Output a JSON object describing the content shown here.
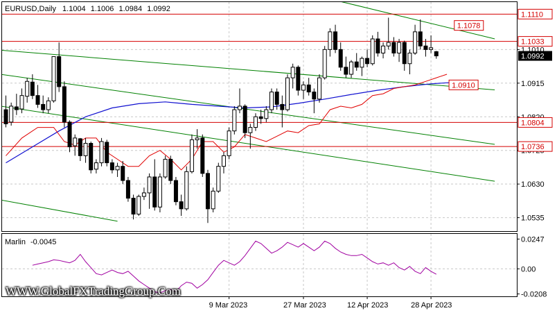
{
  "chart_data": {
    "type": "candlestick",
    "instrument": "EURUSD,Daily",
    "ohlc_header": [
      "1.1004",
      "1.1006",
      "1.0984",
      "1.0992"
    ],
    "ylim": [
      1.0497,
      1.1144
    ],
    "y_ticks": [
      "1.0535",
      "1.0630",
      "1.0725",
      "1.0820",
      "1.0915",
      "1.1010"
    ],
    "x_ticks": [
      {
        "label": "9 Mar 2023",
        "index": 42
      },
      {
        "label": "27 Mar 2023",
        "index": 56
      },
      {
        "label": "12 Apr 2023",
        "index": 68
      },
      {
        "label": "28 Apr 2023",
        "index": 80
      }
    ],
    "last_price": "1.0992",
    "horizontal_levels": [
      {
        "value": 1.111,
        "label": "1.1110",
        "style": "solid"
      },
      {
        "value": 1.1033,
        "label": "1.1033",
        "style": "solid"
      },
      {
        "value": 1.0804,
        "label": "1.0804",
        "style": "solid"
      },
      {
        "value": 1.0736,
        "label": "1.0736",
        "style": "solid"
      }
    ],
    "trend_labels": [
      {
        "value": 1.1078,
        "label": "1.1078"
      },
      {
        "value": 1.091,
        "label": "1.0910"
      }
    ],
    "colors": {
      "level": "#d40000",
      "channel": "#008000",
      "ma_blue": "#1010d0",
      "ma_red": "#e00000",
      "oscillator": "#a000a0"
    },
    "channel_lines": [
      {
        "p1": [
          -1,
          1.1008
        ],
        "p2": [
          92,
          1.0896
        ]
      },
      {
        "p1": [
          -1,
          1.094
        ],
        "p2": [
          92,
          1.0742
        ]
      },
      {
        "p1": [
          -1,
          1.085
        ],
        "p2": [
          92,
          1.0638
        ]
      },
      {
        "p1": [
          -1,
          1.0585
        ],
        "p2": [
          21,
          1.0525
        ]
      },
      {
        "p1": [
          59,
          1.116
        ],
        "p2": [
          92,
          1.104
        ]
      }
    ],
    "candles": [
      [
        1.084,
        1.088,
        1.079,
        1.08
      ],
      [
        1.0805,
        1.086,
        1.0795,
        1.085
      ],
      [
        1.0848,
        1.0885,
        1.0825,
        1.084
      ],
      [
        1.0842,
        1.09,
        1.083,
        1.088
      ],
      [
        1.0878,
        1.093,
        1.086,
        1.092
      ],
      [
        1.0918,
        1.094,
        1.087,
        1.088
      ],
      [
        1.088,
        1.091,
        1.0845,
        1.0855
      ],
      [
        1.0855,
        1.088,
        1.083,
        1.084
      ],
      [
        1.084,
        1.0875,
        1.083,
        1.0865
      ],
      [
        1.0865,
        1.099,
        1.086,
        1.099
      ],
      [
        1.099,
        1.103,
        1.089,
        1.0905
      ],
      [
        1.0905,
        1.092,
        1.079,
        1.0805
      ],
      [
        1.0805,
        1.081,
        1.072,
        1.0735
      ],
      [
        1.0738,
        1.077,
        1.071,
        1.076
      ],
      [
        1.0758,
        1.076,
        1.0695,
        1.071
      ],
      [
        1.071,
        1.076,
        1.069,
        1.0745
      ],
      [
        1.0745,
        1.075,
        1.066,
        1.067
      ],
      [
        1.0672,
        1.07,
        1.066,
        1.069
      ],
      [
        1.069,
        1.076,
        1.068,
        1.075
      ],
      [
        1.0748,
        1.0755,
        1.068,
        1.069
      ],
      [
        1.069,
        1.07,
        1.066,
        1.067
      ],
      [
        1.067,
        1.069,
        1.065,
        1.068
      ],
      [
        1.068,
        1.0695,
        1.063,
        1.064
      ],
      [
        1.064,
        1.065,
        1.058,
        1.059
      ],
      [
        1.059,
        1.06,
        1.053,
        1.0545
      ],
      [
        1.0545,
        1.06,
        1.054,
        1.0595
      ],
      [
        1.0595,
        1.062,
        1.0585,
        1.0605
      ],
      [
        1.0605,
        1.066,
        1.056,
        1.065
      ],
      [
        1.065,
        1.07,
        1.0555,
        1.0565
      ],
      [
        1.0565,
        1.066,
        1.055,
        1.065
      ],
      [
        1.065,
        1.071,
        1.0645,
        1.07
      ],
      [
        1.07,
        1.071,
        1.063,
        1.064
      ],
      [
        1.064,
        1.065,
        1.057,
        1.058
      ],
      [
        1.058,
        1.06,
        1.054,
        1.056
      ],
      [
        1.056,
        1.068,
        1.0555,
        1.0665
      ],
      [
        1.0665,
        1.077,
        1.066,
        1.0755
      ],
      [
        1.0755,
        1.0785,
        1.073,
        1.076
      ],
      [
        1.076,
        1.077,
        1.065,
        1.066
      ],
      [
        1.066,
        1.067,
        1.052,
        1.056
      ],
      [
        1.056,
        1.062,
        1.055,
        1.061
      ],
      [
        1.061,
        1.069,
        1.0605,
        1.068
      ],
      [
        1.068,
        1.072,
        1.066,
        1.071
      ],
      [
        1.071,
        1.079,
        1.07,
        1.078
      ],
      [
        1.078,
        1.085,
        1.077,
        1.084
      ],
      [
        1.084,
        1.09,
        1.083,
        1.085
      ],
      [
        1.085,
        1.0855,
        1.076,
        1.0775
      ],
      [
        1.0775,
        1.08,
        1.073,
        1.079
      ],
      [
        1.079,
        1.083,
        1.078,
        1.082
      ],
      [
        1.082,
        1.084,
        1.08,
        1.0815
      ],
      [
        1.0815,
        1.085,
        1.0805,
        1.084
      ],
      [
        1.084,
        1.09,
        1.083,
        1.089
      ],
      [
        1.089,
        1.09,
        1.084,
        1.0855
      ],
      [
        1.0855,
        1.088,
        1.079,
        1.084
      ],
      [
        1.084,
        1.094,
        1.0835,
        1.093
      ],
      [
        1.093,
        1.097,
        1.09,
        1.096
      ],
      [
        1.096,
        1.0965,
        1.088,
        1.0895
      ],
      [
        1.0895,
        1.092,
        1.087,
        1.091
      ],
      [
        1.091,
        1.093,
        1.088,
        1.089
      ],
      [
        1.089,
        1.09,
        1.083,
        1.087
      ],
      [
        1.087,
        1.094,
        1.086,
        1.093
      ],
      [
        1.093,
        1.102,
        1.0925,
        1.101
      ],
      [
        1.101,
        1.107,
        1.099,
        1.106
      ],
      [
        1.106,
        1.108,
        1.1,
        1.101
      ],
      [
        1.101,
        1.103,
        1.095,
        1.096
      ],
      [
        1.096,
        1.099,
        1.093,
        1.094
      ],
      [
        1.094,
        1.098,
        1.093,
        1.0975
      ],
      [
        1.0975,
        1.1,
        1.095,
        1.096
      ],
      [
        1.096,
        1.099,
        1.0935,
        1.0985
      ],
      [
        1.0985,
        1.101,
        1.096,
        1.097
      ],
      [
        1.097,
        1.105,
        1.0965,
        1.104
      ],
      [
        1.104,
        1.106,
        1.099,
        1.1
      ],
      [
        1.1,
        1.103,
        1.0985,
        1.102
      ],
      [
        1.102,
        1.11,
        1.101,
        1.103
      ],
      [
        1.103,
        1.1045,
        1.099,
        1.1
      ],
      [
        1.1,
        1.104,
        1.0975,
        1.103
      ],
      [
        1.103,
        1.1035,
        1.095,
        1.097
      ],
      [
        1.097,
        1.101,
        1.094,
        1.1
      ],
      [
        1.1,
        1.108,
        1.0995,
        1.106
      ],
      [
        1.106,
        1.1095,
        1.101,
        1.102
      ],
      [
        1.102,
        1.104,
        1.099,
        1.101
      ],
      [
        1.101,
        1.105,
        1.1,
        1.1015
      ],
      [
        1.1004,
        1.1006,
        1.0984,
        1.0992
      ]
    ],
    "ma_blue": [
      [
        0,
        1.069
      ],
      [
        5,
        1.0735
      ],
      [
        10,
        1.078
      ],
      [
        15,
        1.082
      ],
      [
        20,
        1.0845
      ],
      [
        25,
        1.0857
      ],
      [
        30,
        1.0862
      ],
      [
        35,
        1.0855
      ],
      [
        40,
        1.085
      ],
      [
        45,
        1.0845
      ],
      [
        50,
        1.0848
      ],
      [
        55,
        1.0858
      ],
      [
        60,
        1.087
      ],
      [
        65,
        1.0883
      ],
      [
        70,
        1.0895
      ],
      [
        75,
        1.0905
      ],
      [
        80,
        1.0913
      ],
      [
        84,
        1.0917
      ]
    ],
    "ma_red": [
      [
        0,
        1.071
      ],
      [
        3,
        1.076
      ],
      [
        6,
        1.079
      ],
      [
        9,
        1.079
      ],
      [
        11,
        1.075
      ],
      [
        13,
        1.074
      ],
      [
        15,
        1.076
      ],
      [
        17,
        1.076
      ],
      [
        19,
        1.072
      ],
      [
        21,
        1.07
      ],
      [
        23,
        1.068
      ],
      [
        25,
        1.068
      ],
      [
        27,
        1.071
      ],
      [
        29,
        1.0725
      ],
      [
        31,
        1.07
      ],
      [
        33,
        1.067
      ],
      [
        35,
        1.07
      ],
      [
        37,
        1.075
      ],
      [
        39,
        1.075
      ],
      [
        41,
        1.072
      ],
      [
        43,
        1.0735
      ],
      [
        45,
        1.077
      ],
      [
        47,
        1.076
      ],
      [
        49,
        1.075
      ],
      [
        51,
        1.0765
      ],
      [
        53,
        1.078
      ],
      [
        55,
        1.0775
      ],
      [
        57,
        1.0795
      ],
      [
        59,
        1.08
      ],
      [
        61,
        1.084
      ],
      [
        63,
        1.085
      ],
      [
        65,
        1.0845
      ],
      [
        67,
        1.0855
      ],
      [
        69,
        1.088
      ],
      [
        71,
        1.0885
      ],
      [
        73,
        1.09
      ],
      [
        75,
        1.0905
      ],
      [
        77,
        1.091
      ],
      [
        79,
        1.092
      ],
      [
        81,
        1.093
      ],
      [
        83,
        1.094
      ]
    ],
    "oscillator": {
      "name": "Marlin",
      "value": "-0.0045",
      "ylim": [
        -0.0228,
        0.029
      ],
      "y_ticks": [
        "0.0247",
        "0.00",
        "-0.0208"
      ],
      "values": [
        0.003,
        0.004,
        0.005,
        0.006,
        0.0075,
        0.007,
        0.006,
        0.005,
        0.007,
        0.012,
        0.006,
        0.001,
        -0.004,
        -0.005,
        -0.003,
        -0.001,
        -0.003,
        -0.004,
        -0.002,
        -0.006,
        -0.01,
        -0.013,
        -0.016,
        -0.019,
        -0.02,
        -0.018,
        -0.017,
        -0.019,
        -0.014,
        -0.011,
        -0.012,
        -0.016,
        -0.013,
        -0.009,
        -0.003,
        0.003,
        0.007,
        0.005,
        0.003,
        0.006,
        0.011,
        0.017,
        0.023,
        0.021,
        0.017,
        0.013,
        0.015,
        0.018,
        0.022,
        0.02,
        0.018,
        0.021,
        0.018,
        0.015,
        0.018,
        0.023,
        0.021,
        0.017,
        0.014,
        0.012,
        0.011,
        0.011,
        0.012,
        0.009,
        0.006,
        0.004,
        0.005,
        0.003,
        0.005,
        0.001,
        -0.001,
        0.002,
        -0.002,
        -0.004,
        0.001,
        -0.002,
        -0.0045
      ]
    }
  },
  "watermark": "WWW.GlobalFXTradingGroup.Com"
}
